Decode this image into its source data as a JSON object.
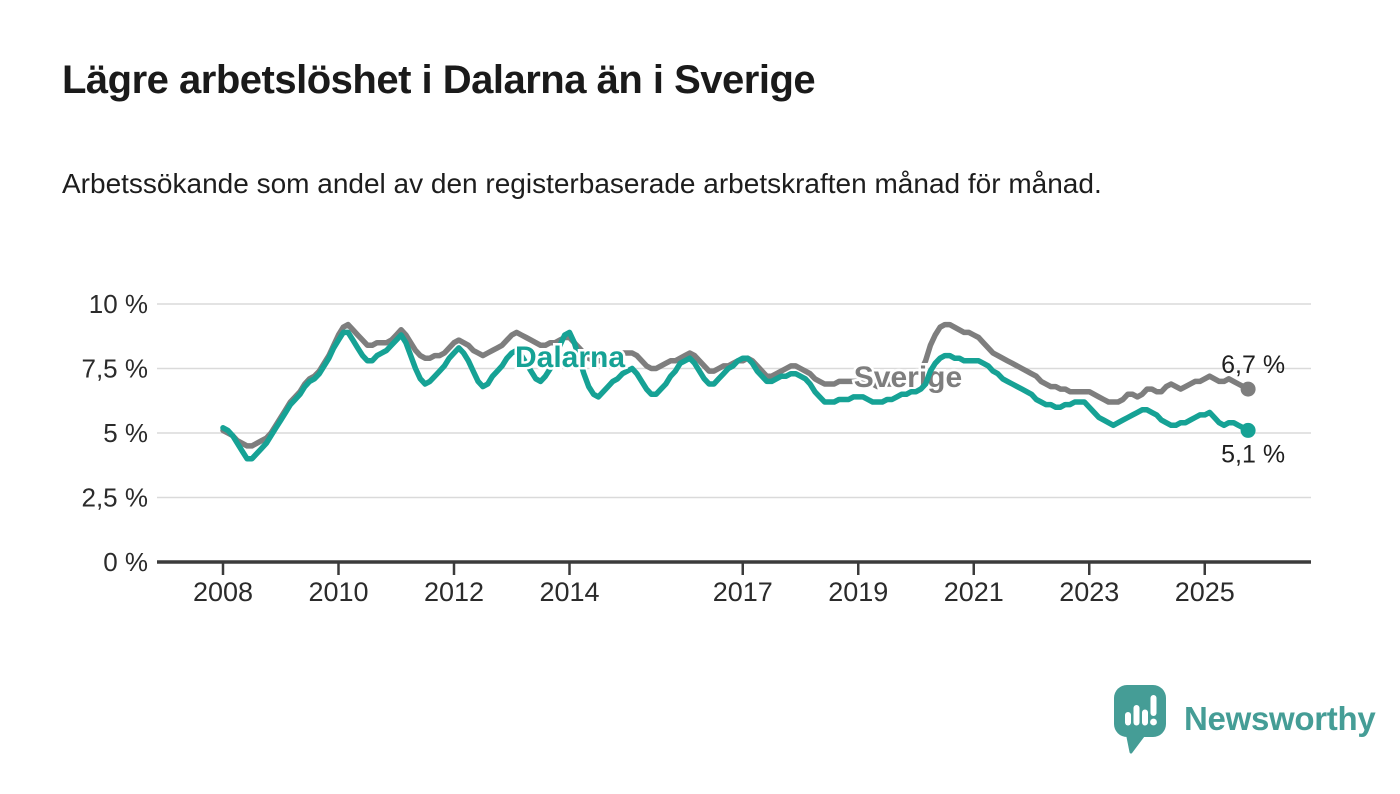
{
  "header": {
    "title": "Lägre arbetslöshet i Dalarna än i Sverige",
    "subtitle": "Arbetssökande som andel av den registerbaserade arbetskraften månad för månad."
  },
  "chart_data": {
    "type": "line",
    "unit": "%",
    "x_start": "2008-01",
    "x_end": "2025-10",
    "x_interval": "monthly",
    "grid": true,
    "legend": "inline-labels",
    "y_axis": {
      "ticks": [
        0,
        2.5,
        5,
        7.5,
        10
      ],
      "tick_labels": [
        "0 %",
        "2,5 %",
        "5 %",
        "7,5 %",
        "10 %"
      ],
      "range": [
        0,
        10.5
      ]
    },
    "x_axis": {
      "ticks": [
        2008,
        2010,
        2012,
        2014,
        2017,
        2019,
        2021,
        2023,
        2025
      ],
      "tick_labels": [
        "2008",
        "2010",
        "2012",
        "2014",
        "2017",
        "2019",
        "2021",
        "2023",
        "2025"
      ]
    },
    "series": [
      {
        "name": "Sverige",
        "color": "#7e7e7e",
        "end_label": "6,7 %",
        "end_label_position": "above",
        "last_value": 6.7,
        "values": [
          5.1,
          5.0,
          4.9,
          4.7,
          4.6,
          4.5,
          4.5,
          4.6,
          4.7,
          4.8,
          5.0,
          5.3,
          5.6,
          5.9,
          6.2,
          6.4,
          6.6,
          6.9,
          7.1,
          7.2,
          7.4,
          7.7,
          8.0,
          8.4,
          8.8,
          9.1,
          9.2,
          9.0,
          8.8,
          8.6,
          8.4,
          8.4,
          8.5,
          8.5,
          8.5,
          8.6,
          8.8,
          9.0,
          8.8,
          8.5,
          8.2,
          8.0,
          7.9,
          7.9,
          8.0,
          8.0,
          8.1,
          8.3,
          8.5,
          8.6,
          8.5,
          8.4,
          8.2,
          8.1,
          8.0,
          8.1,
          8.2,
          8.3,
          8.4,
          8.6,
          8.8,
          8.9,
          8.8,
          8.7,
          8.6,
          8.5,
          8.4,
          8.4,
          8.5,
          8.5,
          8.6,
          8.7,
          8.7,
          8.5,
          8.3,
          8.1,
          7.9,
          7.8,
          7.8,
          7.8,
          7.9,
          8.0,
          8.0,
          8.1,
          8.1,
          8.1,
          8.0,
          7.8,
          7.6,
          7.5,
          7.5,
          7.6,
          7.7,
          7.8,
          7.8,
          7.9,
          8.0,
          8.1,
          8.0,
          7.8,
          7.6,
          7.4,
          7.4,
          7.5,
          7.6,
          7.6,
          7.7,
          7.8,
          7.8,
          7.9,
          7.8,
          7.6,
          7.4,
          7.2,
          7.2,
          7.3,
          7.4,
          7.5,
          7.6,
          7.6,
          7.5,
          7.4,
          7.3,
          7.1,
          7.0,
          6.9,
          6.9,
          6.9,
          7.0,
          7.0,
          7.0,
          7.0,
          7.0,
          7.0,
          6.9,
          6.9,
          6.8,
          6.8,
          6.9,
          6.9,
          7.0,
          7.1,
          7.1,
          7.2,
          7.3,
          7.4,
          7.8,
          8.4,
          8.8,
          9.1,
          9.2,
          9.2,
          9.1,
          9.0,
          8.9,
          8.9,
          8.8,
          8.7,
          8.5,
          8.3,
          8.1,
          8.0,
          7.9,
          7.8,
          7.7,
          7.6,
          7.5,
          7.4,
          7.3,
          7.2,
          7.0,
          6.9,
          6.8,
          6.8,
          6.7,
          6.7,
          6.6,
          6.6,
          6.6,
          6.6,
          6.6,
          6.5,
          6.4,
          6.3,
          6.2,
          6.2,
          6.2,
          6.3,
          6.5,
          6.5,
          6.4,
          6.5,
          6.7,
          6.7,
          6.6,
          6.6,
          6.8,
          6.9,
          6.8,
          6.7,
          6.8,
          6.9,
          7.0,
          7.0,
          7.1,
          7.2,
          7.1,
          7.0,
          7.0,
          7.1,
          7.0,
          6.9,
          6.8,
          6.7
        ]
      },
      {
        "name": "Dalarna",
        "color": "#16a295",
        "end_label": "5,1 %",
        "end_label_position": "below",
        "last_value": 5.1,
        "values": [
          5.2,
          5.1,
          4.9,
          4.6,
          4.3,
          4.0,
          4.0,
          4.2,
          4.4,
          4.6,
          4.9,
          5.2,
          5.5,
          5.8,
          6.1,
          6.3,
          6.5,
          6.8,
          7.0,
          7.1,
          7.3,
          7.6,
          7.9,
          8.3,
          8.6,
          8.9,
          8.9,
          8.6,
          8.3,
          8.0,
          7.8,
          7.8,
          8.0,
          8.1,
          8.2,
          8.4,
          8.6,
          8.8,
          8.5,
          8.0,
          7.5,
          7.1,
          6.9,
          7.0,
          7.2,
          7.4,
          7.6,
          7.9,
          8.1,
          8.3,
          8.1,
          7.8,
          7.4,
          7.0,
          6.8,
          6.9,
          7.2,
          7.4,
          7.6,
          7.9,
          8.1,
          8.2,
          8.0,
          7.7,
          7.4,
          7.1,
          7.0,
          7.2,
          7.5,
          7.9,
          8.4,
          8.8,
          8.9,
          8.5,
          7.9,
          7.3,
          6.8,
          6.5,
          6.4,
          6.6,
          6.8,
          7.0,
          7.1,
          7.3,
          7.4,
          7.5,
          7.3,
          7.0,
          6.7,
          6.5,
          6.5,
          6.7,
          6.9,
          7.2,
          7.4,
          7.7,
          7.8,
          7.9,
          7.7,
          7.4,
          7.1,
          6.9,
          6.9,
          7.1,
          7.3,
          7.5,
          7.6,
          7.8,
          7.9,
          7.9,
          7.7,
          7.4,
          7.2,
          7.0,
          7.0,
          7.1,
          7.2,
          7.2,
          7.3,
          7.3,
          7.2,
          7.1,
          6.9,
          6.6,
          6.4,
          6.2,
          6.2,
          6.2,
          6.3,
          6.3,
          6.3,
          6.4,
          6.4,
          6.4,
          6.3,
          6.2,
          6.2,
          6.2,
          6.3,
          6.3,
          6.4,
          6.5,
          6.5,
          6.6,
          6.6,
          6.7,
          6.9,
          7.4,
          7.7,
          7.9,
          8.0,
          8.0,
          7.9,
          7.9,
          7.8,
          7.8,
          7.8,
          7.8,
          7.7,
          7.6,
          7.4,
          7.3,
          7.1,
          7.0,
          6.9,
          6.8,
          6.7,
          6.6,
          6.5,
          6.3,
          6.2,
          6.1,
          6.1,
          6.0,
          6.0,
          6.1,
          6.1,
          6.2,
          6.2,
          6.2,
          6.0,
          5.8,
          5.6,
          5.5,
          5.4,
          5.3,
          5.4,
          5.5,
          5.6,
          5.7,
          5.8,
          5.9,
          5.9,
          5.8,
          5.7,
          5.5,
          5.4,
          5.3,
          5.3,
          5.4,
          5.4,
          5.5,
          5.6,
          5.7,
          5.7,
          5.8,
          5.6,
          5.4,
          5.3,
          5.4,
          5.4,
          5.3,
          5.2,
          5.1
        ]
      }
    ]
  },
  "footer": {
    "brand": "Newsworthy",
    "brand_color": "#459d96",
    "logo_icon": "newsworthy-barchart-pin-icon"
  }
}
